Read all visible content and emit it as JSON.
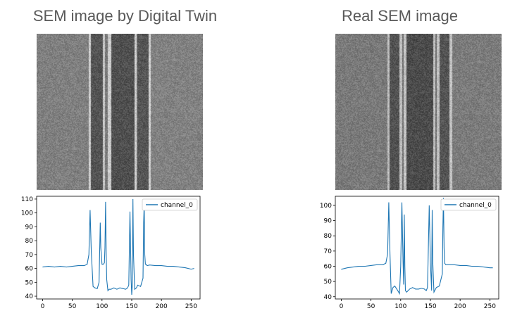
{
  "panels": [
    {
      "title": "SEM image by Digital Twin",
      "grain_seed": 11,
      "bands": [
        {
          "from": 0.0,
          "to": 0.31,
          "tone": 128
        },
        {
          "from": 0.31,
          "to": 0.325,
          "tone": 205
        },
        {
          "from": 0.325,
          "to": 0.395,
          "tone": 84
        },
        {
          "from": 0.395,
          "to": 0.41,
          "tone": 200
        },
        {
          "from": 0.41,
          "to": 0.425,
          "tone": 120
        },
        {
          "from": 0.425,
          "to": 0.445,
          "tone": 205
        },
        {
          "from": 0.445,
          "to": 0.585,
          "tone": 80
        },
        {
          "from": 0.585,
          "to": 0.6,
          "tone": 205
        },
        {
          "from": 0.6,
          "to": 0.605,
          "tone": 128
        },
        {
          "from": 0.605,
          "to": 0.67,
          "tone": 86
        },
        {
          "from": 0.67,
          "to": 0.685,
          "tone": 210
        },
        {
          "from": 0.685,
          "to": 1.0,
          "tone": 130
        }
      ]
    },
    {
      "title": "Real SEM image",
      "grain_seed": 29,
      "bands": [
        {
          "from": 0.0,
          "to": 0.31,
          "tone": 122
        },
        {
          "from": 0.31,
          "to": 0.325,
          "tone": 190
        },
        {
          "from": 0.325,
          "to": 0.385,
          "tone": 82
        },
        {
          "from": 0.385,
          "to": 0.4,
          "tone": 190
        },
        {
          "from": 0.4,
          "to": 0.41,
          "tone": 110
        },
        {
          "from": 0.41,
          "to": 0.425,
          "tone": 195
        },
        {
          "from": 0.425,
          "to": 0.585,
          "tone": 76
        },
        {
          "from": 0.585,
          "to": 0.6,
          "tone": 192
        },
        {
          "from": 0.6,
          "to": 0.61,
          "tone": 110
        },
        {
          "from": 0.61,
          "to": 0.625,
          "tone": 192
        },
        {
          "from": 0.625,
          "to": 0.685,
          "tone": 84
        },
        {
          "from": 0.685,
          "to": 0.7,
          "tone": 196
        },
        {
          "from": 0.7,
          "to": 1.0,
          "tone": 124
        }
      ]
    }
  ],
  "chart_data": [
    {
      "type": "line",
      "title": "",
      "xlabel": "",
      "ylabel": "",
      "xlim": [
        -10,
        265
      ],
      "ylim": [
        38,
        112
      ],
      "xticks": [
        0,
        50,
        100,
        150,
        200,
        250
      ],
      "yticks": [
        40,
        50,
        60,
        70,
        80,
        90,
        100,
        110
      ],
      "grid": false,
      "legend": "top-right",
      "color": "#1f77b4",
      "series": [
        {
          "name": "channel_0",
          "x": [
            0,
            10,
            20,
            30,
            40,
            50,
            60,
            70,
            75,
            78,
            80,
            82,
            85,
            88,
            92,
            95,
            97,
            98,
            100,
            102,
            104,
            105,
            106,
            107,
            108,
            110,
            112,
            115,
            120,
            125,
            130,
            135,
            140,
            143,
            145,
            147,
            149,
            150,
            151,
            152,
            153,
            155,
            158,
            160,
            165,
            169,
            170,
            171,
            172,
            173,
            174,
            176,
            180,
            190,
            200,
            210,
            220,
            230,
            240,
            250,
            255
          ],
          "y": [
            61,
            61.5,
            61,
            61.5,
            61,
            61.5,
            62,
            62,
            63,
            70,
            102,
            72,
            47,
            46,
            45.5,
            50,
            93,
            75,
            63,
            63,
            64,
            75,
            108,
            72,
            52,
            44,
            45,
            45,
            46,
            45,
            46,
            45.5,
            45,
            46,
            48,
            101,
            52,
            41,
            48,
            110,
            70,
            45,
            46,
            48,
            47,
            53,
            93,
            107,
            70,
            63,
            63,
            62,
            62.5,
            62,
            62,
            61.5,
            61.5,
            61,
            60.5,
            59.5,
            60
          ]
        }
      ]
    },
    {
      "type": "line",
      "title": "",
      "xlabel": "",
      "ylabel": "",
      "xlim": [
        -10,
        265
      ],
      "ylim": [
        38.5,
        106
      ],
      "xticks": [
        0,
        50,
        100,
        150,
        200,
        250
      ],
      "yticks": [
        40,
        50,
        60,
        70,
        80,
        90,
        100
      ],
      "grid": false,
      "legend": "top-right",
      "color": "#1f77b4",
      "series": [
        {
          "name": "channel_0",
          "x": [
            0,
            10,
            20,
            30,
            40,
            50,
            60,
            70,
            75,
            78,
            80,
            82,
            84,
            87,
            90,
            95,
            98,
            100,
            102,
            104,
            105,
            106,
            107,
            108,
            110,
            115,
            120,
            125,
            130,
            135,
            140,
            143,
            145,
            146,
            148,
            150,
            152,
            153,
            154,
            156,
            160,
            165,
            170,
            171,
            172,
            173,
            174,
            176,
            180,
            190,
            200,
            210,
            220,
            230,
            240,
            250,
            255
          ],
          "y": [
            58,
            59,
            59.5,
            60,
            60,
            60.5,
            61,
            61,
            62,
            68,
            102,
            68,
            42,
            46,
            47,
            44,
            42,
            60,
            102,
            62,
            48,
            94,
            60,
            44,
            43,
            45,
            46,
            45,
            45,
            45.5,
            45,
            44,
            46,
            62,
            100,
            62,
            44,
            97,
            62,
            43,
            46,
            47,
            55,
            86,
            105,
            72,
            62,
            61,
            61,
            61,
            60.5,
            60.5,
            60,
            60,
            59.5,
            59,
            59
          ]
        }
      ]
    }
  ]
}
